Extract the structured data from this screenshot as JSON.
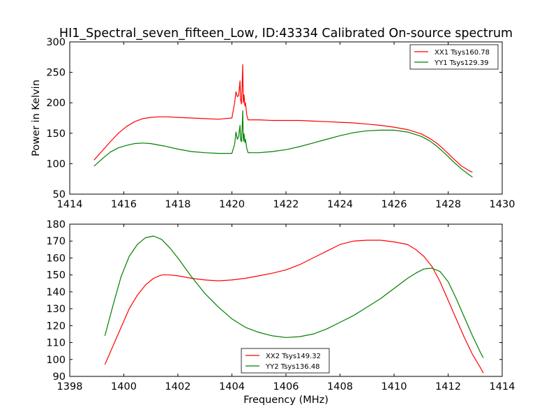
{
  "title": "HI1_Spectral_seven_fifteen_Low, ID:43334 Calibrated On-source spectrum",
  "chart_data": [
    {
      "type": "line",
      "title": "HI1_Spectral_seven_fifteen_Low, ID:43334 Calibrated On-source spectrum",
      "xlabel": "",
      "ylabel": "Power in Kelvin",
      "xlim": [
        1414,
        1430
      ],
      "ylim": [
        50,
        300
      ],
      "xticks": [
        1414,
        1416,
        1418,
        1420,
        1422,
        1424,
        1426,
        1428,
        1430
      ],
      "yticks": [
        50,
        100,
        150,
        200,
        250,
        300
      ],
      "grid": false,
      "legend": "top-right",
      "series": [
        {
          "name": "XX1 Tsys160.78",
          "color": "#ff0000",
          "x": [
            1414.9,
            1415.2,
            1415.5,
            1415.8,
            1416.1,
            1416.4,
            1416.7,
            1417.0,
            1417.3,
            1417.6,
            1418.0,
            1418.5,
            1419.0,
            1419.5,
            1420.0,
            1420.1,
            1420.15,
            1420.2,
            1420.25,
            1420.3,
            1420.32,
            1420.35,
            1420.38,
            1420.4,
            1420.42,
            1420.45,
            1420.48,
            1420.5,
            1420.55,
            1420.6,
            1421.0,
            1421.5,
            1422.0,
            1422.5,
            1423.0,
            1423.5,
            1424.0,
            1424.5,
            1425.0,
            1425.5,
            1426.0,
            1426.5,
            1427.0,
            1427.3,
            1427.6,
            1427.9,
            1428.2,
            1428.5,
            1428.8,
            1428.9
          ],
          "y": [
            106,
            121,
            136,
            150,
            161,
            169,
            174,
            176,
            177,
            177,
            176,
            175,
            174,
            173,
            175,
            200,
            218,
            210,
            212,
            236,
            205,
            198,
            230,
            263,
            200,
            213,
            195,
            200,
            180,
            172,
            172,
            171,
            171,
            171,
            170,
            169,
            168,
            167,
            165,
            163,
            160,
            156,
            149,
            142,
            133,
            121,
            108,
            96,
            88,
            86
          ]
        },
        {
          "name": "YY1 Tsys129.39",
          "color": "#008000",
          "x": [
            1414.9,
            1415.2,
            1415.5,
            1415.8,
            1416.1,
            1416.4,
            1416.7,
            1417.0,
            1417.5,
            1418.0,
            1418.5,
            1419.0,
            1419.5,
            1420.0,
            1420.1,
            1420.15,
            1420.2,
            1420.25,
            1420.3,
            1420.32,
            1420.35,
            1420.38,
            1420.4,
            1420.42,
            1420.45,
            1420.48,
            1420.5,
            1420.55,
            1420.6,
            1421.0,
            1421.5,
            1422.0,
            1422.5,
            1423.0,
            1423.5,
            1424.0,
            1424.5,
            1425.0,
            1425.5,
            1426.0,
            1426.5,
            1427.0,
            1427.3,
            1427.6,
            1427.9,
            1428.2,
            1428.5,
            1428.8,
            1428.9
          ],
          "y": [
            96,
            108,
            119,
            126,
            130,
            133,
            134,
            133,
            129,
            124,
            120,
            118,
            117,
            117,
            132,
            152,
            140,
            145,
            163,
            140,
            136,
            160,
            187,
            137,
            149,
            135,
            140,
            125,
            118,
            118,
            120,
            123,
            128,
            134,
            140,
            146,
            151,
            154,
            155,
            155,
            152,
            145,
            138,
            128,
            116,
            103,
            91,
            81,
            78
          ]
        }
      ]
    },
    {
      "type": "line",
      "title": "",
      "xlabel": "Frequency (MHz)",
      "ylabel": "",
      "xlim": [
        1398,
        1414
      ],
      "ylim": [
        90,
        180
      ],
      "xticks": [
        1398,
        1400,
        1402,
        1404,
        1406,
        1408,
        1410,
        1412,
        1414
      ],
      "yticks": [
        90,
        100,
        110,
        120,
        130,
        140,
        150,
        160,
        170,
        180
      ],
      "grid": false,
      "legend": "bottom-center",
      "series": [
        {
          "name": "XX2 Tsys149.32",
          "color": "#ff0000",
          "x": [
            1399.3,
            1399.6,
            1399.9,
            1400.2,
            1400.5,
            1400.8,
            1401.1,
            1401.4,
            1401.7,
            1402.0,
            1402.5,
            1403.0,
            1403.5,
            1404.0,
            1404.5,
            1405.0,
            1405.5,
            1406.0,
            1406.5,
            1407.0,
            1407.5,
            1408.0,
            1408.5,
            1409.0,
            1409.5,
            1410.0,
            1410.5,
            1410.8,
            1411.1,
            1411.4,
            1411.7,
            1412.0,
            1412.3,
            1412.6,
            1412.9,
            1413.2,
            1413.3
          ],
          "y": [
            97,
            108,
            119,
            130,
            138,
            144,
            148,
            150,
            150,
            149.5,
            148,
            147,
            146.5,
            147,
            148,
            149.5,
            151,
            153,
            156,
            160,
            164,
            168,
            170,
            170.5,
            170.5,
            169.5,
            168,
            165,
            161,
            155,
            146,
            135,
            124,
            113,
            103,
            95,
            92
          ]
        },
        {
          "name": "YY2 Tsys136.48",
          "color": "#008000",
          "x": [
            1399.3,
            1399.6,
            1399.9,
            1400.2,
            1400.5,
            1400.8,
            1401.1,
            1401.4,
            1401.7,
            1402.0,
            1402.5,
            1403.0,
            1403.5,
            1404.0,
            1404.5,
            1405.0,
            1405.5,
            1406.0,
            1406.5,
            1407.0,
            1407.5,
            1408.0,
            1408.5,
            1409.0,
            1409.5,
            1410.0,
            1410.5,
            1410.8,
            1411.1,
            1411.4,
            1411.7,
            1412.0,
            1412.3,
            1412.6,
            1412.9,
            1413.2,
            1413.3
          ],
          "y": [
            114,
            132,
            149,
            161,
            168,
            172,
            173,
            171,
            166,
            160,
            149,
            139,
            131,
            124,
            119,
            116,
            114,
            113,
            113.5,
            115,
            118,
            122,
            126,
            131,
            136,
            142,
            148,
            151,
            153.5,
            154,
            152,
            146,
            136,
            125,
            114,
            104,
            101
          ]
        }
      ]
    }
  ]
}
